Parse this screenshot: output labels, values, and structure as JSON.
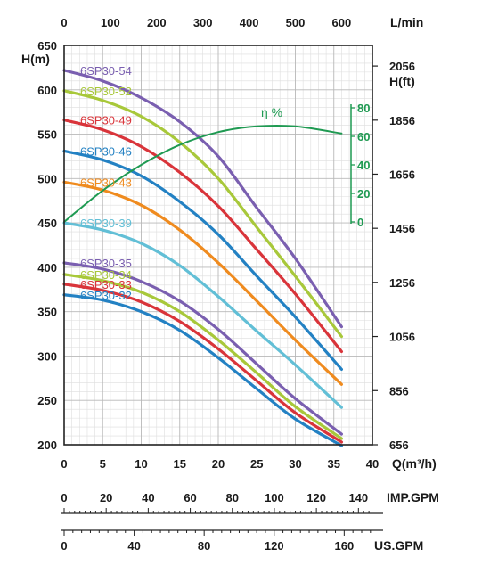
{
  "chart_data": {
    "type": "line",
    "x_axis": {
      "label": "Q(m³/h)",
      "range": [
        0,
        40
      ],
      "ticks": [
        "0",
        "5",
        "10",
        "15",
        "20",
        "25",
        "30",
        "35",
        "40"
      ]
    },
    "top_axis": {
      "unit": "L/min",
      "range": [
        0,
        666.7
      ],
      "ticks": [
        "0",
        "100",
        "200",
        "300",
        "400",
        "500",
        "600"
      ]
    },
    "y_axis": {
      "unit": "H(m)",
      "range": [
        200,
        650
      ],
      "ticks": [
        "650",
        "600",
        "550",
        "500",
        "450",
        "400",
        "350",
        "300",
        "250",
        "200"
      ]
    },
    "y_right_axis": {
      "unit": "H(ft)",
      "ticks": [
        "2056",
        "1856",
        "1656",
        "1456",
        "1256",
        "1056",
        "856",
        "656"
      ],
      "tick_m": [
        626.8,
        565.8,
        504.9,
        443.9,
        383.0,
        322.0,
        261.0,
        200.0
      ]
    },
    "efficiency_axis": {
      "label": "η %",
      "ticks": [
        "80",
        "60",
        "40",
        "20",
        "0"
      ],
      "range": [
        0,
        80
      ]
    },
    "imp_gpm_axis": {
      "unit": "IMP.GPM",
      "ticks": [
        "0",
        "20",
        "40",
        "60",
        "80",
        "100",
        "120",
        "140"
      ]
    },
    "us_gpm_axis": {
      "unit": "US.GPM",
      "ticks": [
        "0",
        "40",
        "80",
        "120",
        "160"
      ]
    },
    "grid": true,
    "series": [
      {
        "name": "6SP30-54",
        "color": "#7a5fb0",
        "x": [
          0,
          5,
          10,
          15,
          20,
          25,
          30,
          36
        ],
        "y": [
          622,
          610,
          591,
          564,
          525,
          467,
          410,
          333
        ]
      },
      {
        "name": "6SP30-52",
        "color": "#a8c83a",
        "x": [
          0,
          5,
          10,
          15,
          20,
          25,
          30,
          36
        ],
        "y": [
          599,
          588,
          570,
          541,
          500,
          445,
          390,
          322
        ]
      },
      {
        "name": "6SP30-49",
        "color": "#d9343a",
        "x": [
          0,
          5,
          10,
          15,
          20,
          25,
          30,
          36
        ],
        "y": [
          566,
          555,
          536,
          507,
          469,
          420,
          370,
          305
        ]
      },
      {
        "name": "6SP30-46",
        "color": "#2381c3",
        "x": [
          0,
          5,
          10,
          15,
          20,
          25,
          30,
          36
        ],
        "y": [
          531,
          521,
          503,
          474,
          437,
          390,
          344,
          285
        ]
      },
      {
        "name": "6SP30-43",
        "color": "#ef8b1f",
        "x": [
          0,
          5,
          10,
          15,
          20,
          25,
          30,
          36
        ],
        "y": [
          496,
          487,
          470,
          442,
          405,
          362,
          318,
          268
        ]
      },
      {
        "name": "6SP30-39",
        "color": "#62bfd6",
        "x": [
          0,
          5,
          10,
          15,
          20,
          25,
          30,
          36
        ],
        "y": [
          450,
          442,
          427,
          402,
          367,
          328,
          290,
          242
        ]
      },
      {
        "name": "6SP30-35",
        "color": "#7a5fb0",
        "x": [
          0,
          5,
          10,
          15,
          20,
          25,
          30,
          36
        ],
        "y": [
          405,
          398,
          384,
          362,
          330,
          291,
          252,
          212
        ]
      },
      {
        "name": "6SP30-34",
        "color": "#a8c83a",
        "x": [
          0,
          5,
          10,
          15,
          20,
          25,
          30,
          36
        ],
        "y": [
          392,
          385,
          372,
          350,
          318,
          281,
          243,
          207
        ]
      },
      {
        "name": "6SP30-33",
        "color": "#d9343a",
        "x": [
          0,
          5,
          10,
          15,
          20,
          25,
          30,
          36
        ],
        "y": [
          381,
          374,
          361,
          339,
          308,
          272,
          236,
          203
        ]
      },
      {
        "name": "6SP30-32",
        "color": "#2381c3",
        "x": [
          0,
          5,
          10,
          15,
          20,
          25,
          30,
          36
        ],
        "y": [
          369,
          363,
          350,
          329,
          298,
          263,
          229,
          199
        ]
      },
      {
        "name": "η %",
        "color": "#1f9a52",
        "x": [
          0,
          5,
          10,
          15,
          20,
          25,
          30,
          36
        ],
        "y": [
          0,
          22,
          40,
          54,
          63,
          67,
          67,
          62
        ]
      }
    ]
  }
}
